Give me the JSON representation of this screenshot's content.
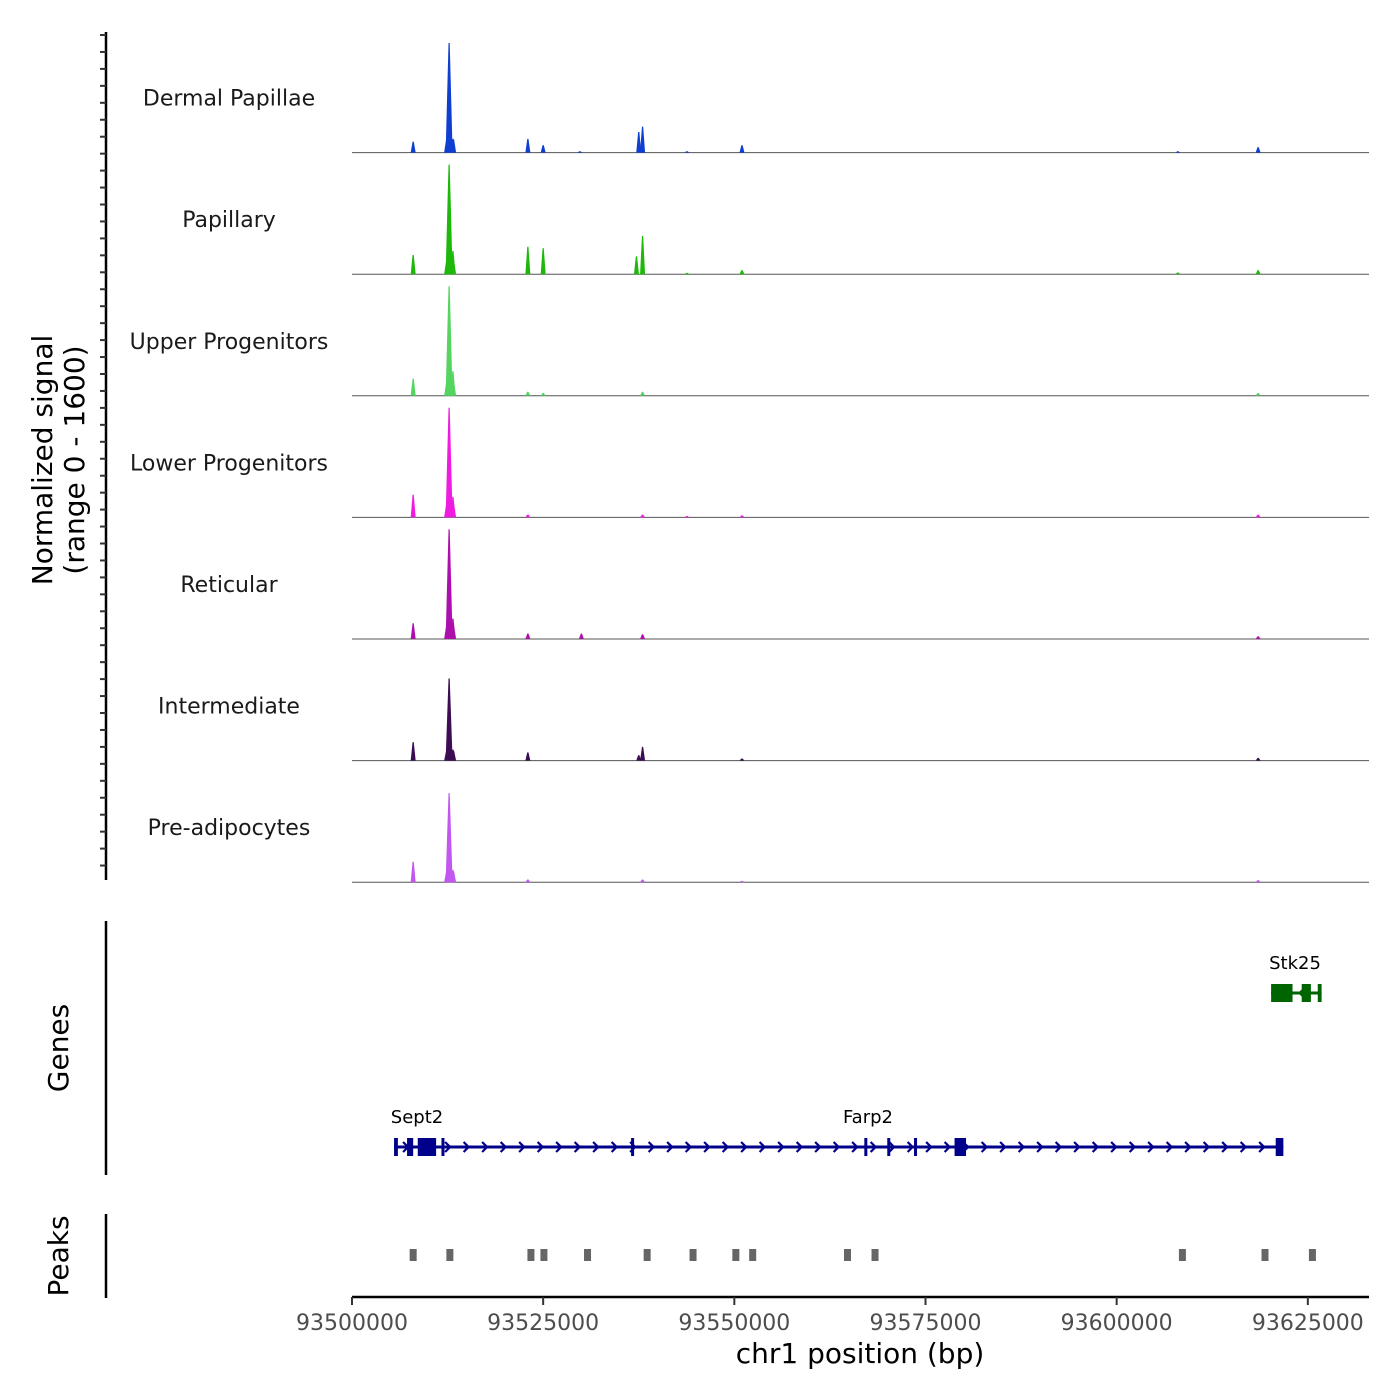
{
  "chart_data": {
    "type": "area",
    "ylabel": "Normalized signal",
    "ylabel_range": "(range 0 - 1600)",
    "ylim": [
      0,
      1600
    ],
    "xlabel": "chr1 position (bp)",
    "xlim": [
      93500000,
      93633000
    ],
    "x_ticks": [
      {
        "value": 93500000,
        "label": "93500000"
      },
      {
        "value": 93525000,
        "label": "93525000"
      },
      {
        "value": 93550000,
        "label": "93550000"
      },
      {
        "value": 93575000,
        "label": "93575000"
      },
      {
        "value": 93600000,
        "label": "93600000"
      },
      {
        "value": 93625000,
        "label": "93625000"
      }
    ],
    "tracks": [
      {
        "name": "Dermal Papillae",
        "color": "#0f3fd1",
        "peaks": [
          [
            93508000,
            160
          ],
          [
            93512700,
            1600
          ],
          [
            93513200,
            200
          ],
          [
            93523000,
            200
          ],
          [
            93525000,
            110
          ],
          [
            93529800,
            20
          ],
          [
            93537500,
            300
          ],
          [
            93538000,
            380
          ],
          [
            93543800,
            20
          ],
          [
            93551000,
            110
          ],
          [
            93608000,
            20
          ],
          [
            93618500,
            80
          ]
        ]
      },
      {
        "name": "Papillary",
        "color": "#1db80a",
        "peaks": [
          [
            93508000,
            280
          ],
          [
            93512700,
            1600
          ],
          [
            93513200,
            340
          ],
          [
            93523000,
            400
          ],
          [
            93525000,
            380
          ],
          [
            93537200,
            260
          ],
          [
            93538000,
            560
          ],
          [
            93543800,
            20
          ],
          [
            93551000,
            60
          ],
          [
            93608000,
            25
          ],
          [
            93618500,
            60
          ]
        ]
      },
      {
        "name": "Upper Progenitors",
        "color": "#55d460",
        "peaks": [
          [
            93508000,
            250
          ],
          [
            93512700,
            1600
          ],
          [
            93513200,
            360
          ],
          [
            93523000,
            60
          ],
          [
            93525000,
            40
          ],
          [
            93538000,
            60
          ],
          [
            93618500,
            40
          ]
        ]
      },
      {
        "name": "Lower Progenitors",
        "color": "#ef1be0",
        "peaks": [
          [
            93508000,
            330
          ],
          [
            93512700,
            1600
          ],
          [
            93513200,
            300
          ],
          [
            93523000,
            40
          ],
          [
            93538000,
            40
          ],
          [
            93543800,
            20
          ],
          [
            93551000,
            30
          ],
          [
            93618500,
            40
          ]
        ]
      },
      {
        "name": "Reticular",
        "color": "#ad0fad",
        "peaks": [
          [
            93508000,
            230
          ],
          [
            93512700,
            1600
          ],
          [
            93513200,
            300
          ],
          [
            93523000,
            80
          ],
          [
            93530000,
            80
          ],
          [
            93538000,
            70
          ],
          [
            93618500,
            40
          ]
        ]
      },
      {
        "name": "Intermediate",
        "color": "#3c0d52",
        "peaks": [
          [
            93508000,
            270
          ],
          [
            93512700,
            1200
          ],
          [
            93513200,
            160
          ],
          [
            93523000,
            120
          ],
          [
            93537500,
            80
          ],
          [
            93538000,
            200
          ],
          [
            93551000,
            30
          ],
          [
            93618500,
            40
          ]
        ]
      },
      {
        "name": "Pre-adipocytes",
        "color": "#c156f0",
        "peaks": [
          [
            93508000,
            300
          ],
          [
            93512700,
            1300
          ],
          [
            93513200,
            180
          ],
          [
            93523000,
            40
          ],
          [
            93538000,
            40
          ],
          [
            93551000,
            20
          ],
          [
            93618500,
            30
          ]
        ]
      }
    ],
    "genes_label": "Genes",
    "genes": [
      {
        "name": "Stk25",
        "color": "#006400",
        "strand": "-",
        "start": 93620200,
        "end": 93626800,
        "exons": [
          [
            93620200,
            93623000
          ],
          [
            93624200,
            93625400
          ],
          [
            93626300,
            93626800
          ]
        ]
      },
      {
        "name": "Sept2",
        "color": "#00008b",
        "strand": "+",
        "start": 93505500,
        "end": 93512000,
        "exons": [
          [
            93505500,
            93506000
          ],
          [
            93507200,
            93508000
          ],
          [
            93508600,
            93511000
          ],
          [
            93511700,
            93512000
          ]
        ]
      },
      {
        "name": "Farp2",
        "color": "#00008b",
        "strand": "+",
        "start": 93511000,
        "end": 93621800,
        "exons": [
          [
            93536500,
            93536700
          ],
          [
            93567000,
            93567200
          ],
          [
            93570000,
            93570200
          ],
          [
            93573500,
            93573800
          ],
          [
            93578800,
            93580300
          ],
          [
            93620800,
            93621800
          ]
        ]
      }
    ],
    "peaks_label": "Peaks",
    "peak_regions": [
      93508000,
      93512800,
      93523400,
      93525100,
      93530800,
      93538600,
      93544600,
      93550200,
      93552400,
      93564800,
      93568400,
      93608600,
      93619400,
      93625600
    ]
  }
}
